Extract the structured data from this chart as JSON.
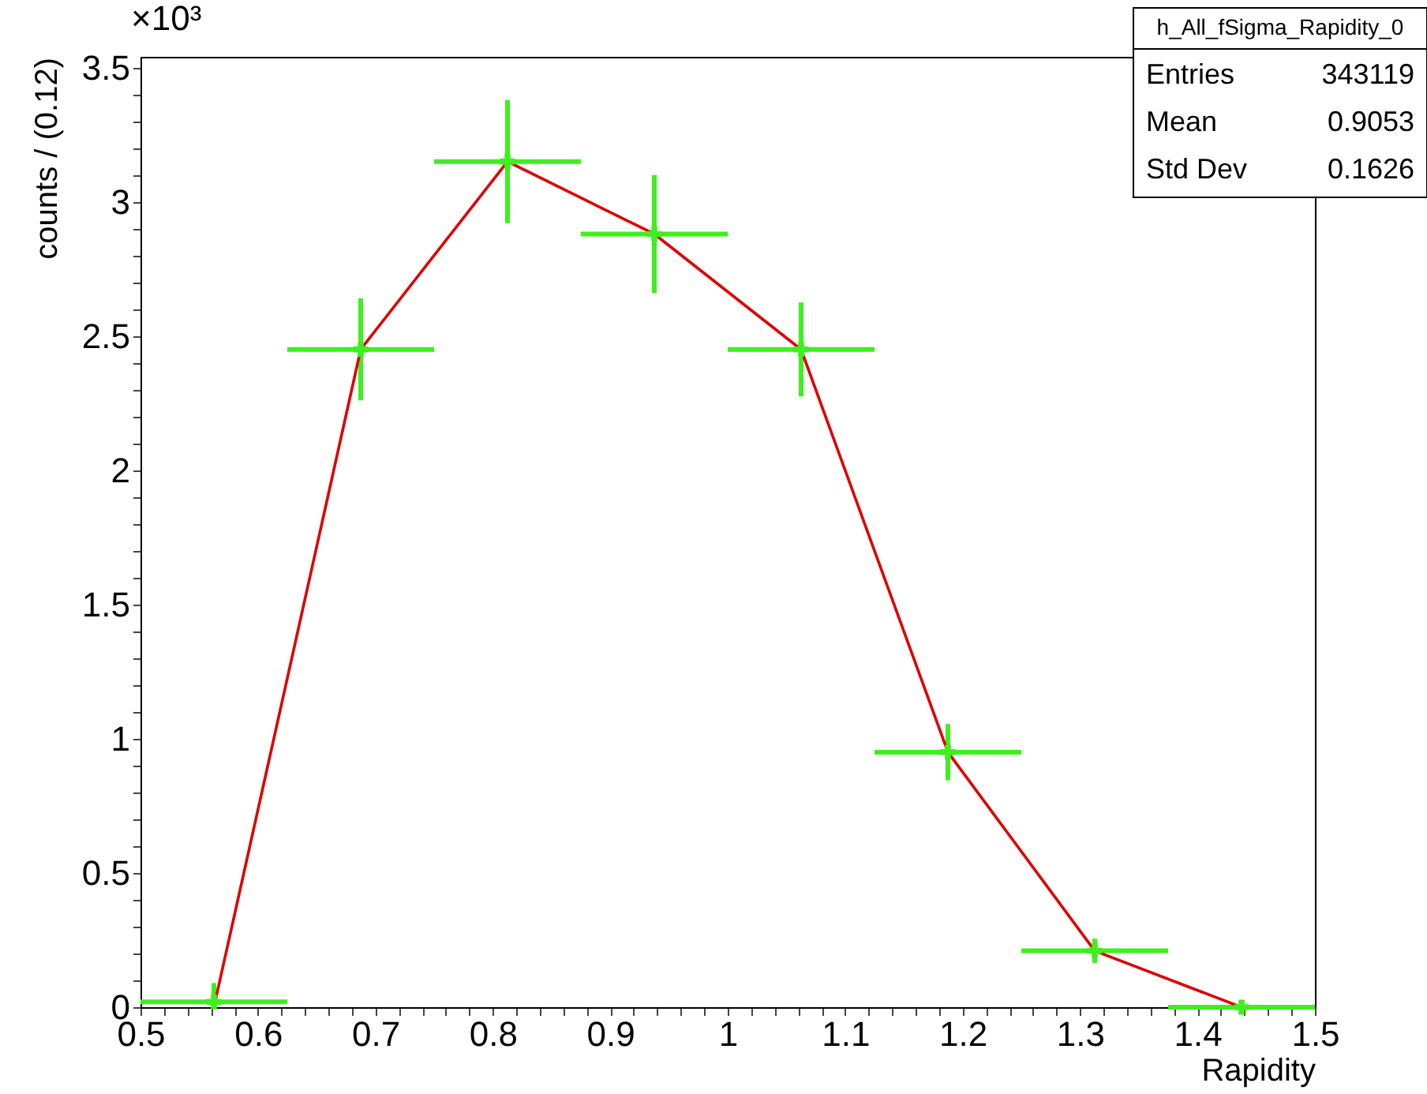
{
  "chart_data": {
    "type": "scatter",
    "xlabel": "Rapidity",
    "ylabel": "counts / (0.12)",
    "annotations": [
      "×10³",
      "h_All_fSigma_Rapidity_0",
      "Entries",
      "343119",
      "Mean",
      "0.9053",
      "Std Dev",
      "0.1626"
    ],
    "xlim": [
      0.5,
      1.5
    ],
    "ylim": [
      0,
      3.54
    ],
    "xticks": [
      0.5,
      {
        "value": 0.52,
        "label": null
      },
      {
        "value": 0.54,
        "label": null
      },
      {
        "value": 0.56,
        "label": null
      },
      {
        "value": 0.58,
        "label": null
      },
      0.6,
      {
        "value": 0.62,
        "label": null
      },
      {
        "value": 0.64,
        "label": null
      },
      {
        "value": 0.66,
        "label": null
      },
      {
        "value": 0.68,
        "label": null
      },
      0.7,
      {
        "value": 0.72,
        "label": null
      },
      {
        "value": 0.74,
        "label": null
      },
      {
        "value": 0.76,
        "label": null
      },
      {
        "value": 0.78,
        "label": null
      },
      0.8,
      {
        "value": 0.82,
        "label": null
      },
      {
        "value": 0.84,
        "label": null
      },
      {
        "value": 0.86,
        "label": null
      },
      {
        "value": 0.88,
        "label": null
      },
      0.9,
      {
        "value": 0.92,
        "label": null
      },
      {
        "value": 0.94,
        "label": null
      },
      {
        "value": 0.96,
        "label": null
      },
      {
        "value": 0.98,
        "label": null
      },
      1,
      {
        "value": 1.02,
        "label": null
      },
      {
        "value": 1.04,
        "label": null
      },
      {
        "value": 1.06,
        "label": null
      },
      {
        "value": 1.08,
        "label": null
      },
      1.1,
      {
        "value": 1.12,
        "label": null
      },
      {
        "value": 1.14,
        "label": null
      },
      {
        "value": 1.16,
        "label": null
      },
      {
        "value": 1.18,
        "label": null
      },
      1.2,
      {
        "value": 1.22,
        "label": null
      },
      {
        "value": 1.24,
        "label": null
      },
      {
        "value": 1.26,
        "label": null
      },
      {
        "value": 1.28,
        "label": null
      },
      1.3,
      {
        "value": 1.32,
        "label": null
      },
      {
        "value": 1.34,
        "label": null
      },
      {
        "value": 1.36,
        "label": null
      },
      {
        "value": 1.38,
        "label": null
      },
      1.4,
      {
        "value": 1.42,
        "label": null
      },
      {
        "value": 1.44,
        "label": null
      },
      {
        "value": 1.46,
        "label": null
      },
      {
        "value": 1.48,
        "label": null
      },
      1.5
    ],
    "yticks": [
      0,
      {
        "value": 0.1,
        "label": null
      },
      {
        "value": 0.2,
        "label": null
      },
      {
        "value": 0.3,
        "label": null
      },
      {
        "value": 0.4,
        "label": null
      },
      0.5,
      {
        "value": 0.6,
        "label": null
      },
      {
        "value": 0.7,
        "label": null
      },
      {
        "value": 0.8,
        "label": null
      },
      {
        "value": 0.9,
        "label": null
      },
      1,
      {
        "value": 1.1,
        "label": null
      },
      {
        "value": 1.2,
        "label": null
      },
      {
        "value": 1.3,
        "label": null
      },
      {
        "value": 1.4,
        "label": null
      },
      1.5,
      {
        "value": 1.6,
        "label": null
      },
      {
        "value": 1.7,
        "label": null
      },
      {
        "value": 1.8,
        "label": null
      },
      {
        "value": 1.9,
        "label": null
      },
      2,
      {
        "value": 2.1,
        "label": null
      },
      {
        "value": 2.2,
        "label": null
      },
      {
        "value": 2.3,
        "label": null
      },
      {
        "value": 2.4,
        "label": null
      },
      2.5,
      {
        "value": 2.6,
        "label": null
      },
      {
        "value": 2.7,
        "label": null
      },
      {
        "value": 2.8,
        "label": null
      },
      {
        "value": 2.9,
        "label": null
      },
      3,
      {
        "value": 3.1,
        "label": null
      },
      {
        "value": 3.2,
        "label": null
      },
      {
        "value": 3.3,
        "label": null
      },
      {
        "value": 3.4,
        "label": null
      },
      3.5
    ],
    "grid": false,
    "series": [
      {
        "color": "#3ef01e",
        "marker": "cross",
        "x": [
          0.5625,
          0.6875,
          0.8125,
          0.9375,
          1.0625,
          1.1875,
          1.3125,
          1.4375
        ],
        "values": [
          0.02,
          2.45,
          3.15,
          2.88,
          2.45,
          0.95,
          0.21,
          0
        ],
        "errors": [
          [
            0,
            0.09
          ],
          0.19,
          0.23,
          0.22,
          0.175,
          0.105,
          0.045,
          0
        ],
        "xerrors": [
          0.0625,
          0.0625,
          0.0625,
          0.0625,
          0.0625,
          0.0625,
          0.0625,
          0.0625
        ]
      },
      {
        "type": "line",
        "color": "#dd0000",
        "line_style": "solid",
        "x": [
          0.5625,
          0.6875,
          0.8125,
          0.9375,
          1.0625,
          1.1875,
          1.3125,
          1.4375
        ],
        "values": [
          0,
          2.45,
          3.15,
          2.88,
          2.45,
          0.95,
          0.21,
          0
        ]
      }
    ]
  }
}
